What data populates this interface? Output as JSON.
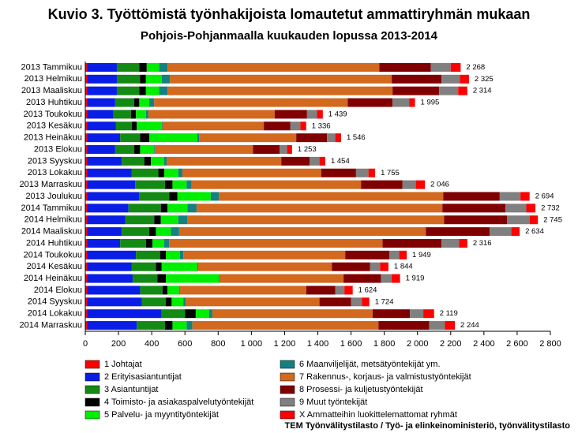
{
  "chart_data": {
    "type": "stacked_barh",
    "title": "Kuvio 3. Työttömistä työnhakijoista lomautetut ammattiryhmän mukaan",
    "subtitle": "Pohjois-Pohjanmaalla kuukauden lopussa 2013-2014",
    "source": "TEM Työnvälitystilasto / Työ- ja elinkeinoministeriö, työnvälitystilasto",
    "categories": [
      "2013 Tammikuu",
      "2013 Helmikuu",
      "2013 Maaliskuu",
      "2013 Huhtikuu",
      "2013 Toukokuu",
      "2013 Kesäkuu",
      "2013 Heinäkuu",
      "2013 Elokuu",
      "2013 Syyskuu",
      "2013 Lokakuu",
      "2013 Marraskuu",
      "2013 Joulukuu",
      "2014 Tammikuu",
      "2014 Helmikuu",
      "2014 Maaliskuu",
      "2014 Huhtikuu",
      "2014 Toukokuu",
      "2014 Kesäkuu",
      "2014 Heinäkuu",
      "2014 Elokuu",
      "2014 Syyskuu",
      "2014 Lokakuu",
      "2014 Marraskuu"
    ],
    "series": [
      {
        "name": "1 Johtajat",
        "color": "#ff0000",
        "values": [
          10,
          10,
          10,
          10,
          10,
          10,
          10,
          10,
          10,
          10,
          10,
          10,
          10,
          10,
          10,
          10,
          10,
          10,
          10,
          10,
          10,
          10,
          10
        ]
      },
      {
        "name": "2 Erityisasiantuntijat",
        "color": "#0a1de6",
        "values": [
          180,
          180,
          180,
          170,
          160,
          175,
          200,
          170,
          210,
          270,
          290,
          315,
          250,
          230,
          210,
          200,
          295,
          270,
          275,
          320,
          330,
          450,
          300
        ]
      },
      {
        "name": "3 Asiantuntijat",
        "color": "#138a13",
        "values": [
          135,
          140,
          135,
          115,
          105,
          95,
          120,
          115,
          135,
          160,
          180,
          180,
          195,
          175,
          165,
          155,
          145,
          145,
          150,
          135,
          145,
          140,
          170
        ]
      },
      {
        "name": "4 Toimisto- ja asiakaspalvelutyöntekijät",
        "color": "#000000",
        "values": [
          45,
          35,
          40,
          30,
          30,
          30,
          55,
          35,
          40,
          35,
          45,
          50,
          40,
          40,
          40,
          40,
          35,
          35,
          50,
          30,
          35,
          65,
          45
        ]
      },
      {
        "name": "5 Palvelu- ja myyntityöntekijät",
        "color": "#00ee00",
        "values": [
          75,
          95,
          80,
          60,
          60,
          150,
          290,
          85,
          80,
          85,
          85,
          200,
          120,
          105,
          90,
          70,
          85,
          215,
          320,
          70,
          70,
          80,
          85
        ]
      },
      {
        "name": "6 Maanviljelijät, metsätyöntekijät ym.",
        "color": "#158080",
        "values": [
          50,
          50,
          50,
          30,
          15,
          5,
          10,
          5,
          15,
          25,
          30,
          50,
          55,
          55,
          50,
          30,
          20,
          5,
          5,
          5,
          15,
          20,
          35
        ]
      },
      {
        "name": "7 Rakennus-, korjaus- ja valmistustyöntekijät",
        "color": "#d2691e",
        "values": [
          1275,
          1335,
          1355,
          1165,
          760,
          610,
          585,
          590,
          690,
          835,
          1020,
          1350,
          1480,
          1545,
          1485,
          1285,
          975,
          805,
          745,
          760,
          805,
          965,
          1120
        ]
      },
      {
        "name": "8 Prosessi- ja kuljetustyöntekijät",
        "color": "#800000",
        "values": [
          310,
          300,
          280,
          270,
          195,
          160,
          185,
          160,
          170,
          210,
          250,
          340,
          380,
          380,
          385,
          355,
          265,
          230,
          225,
          175,
          190,
          225,
          305
        ]
      },
      {
        "name": "9 Muut työntekijät",
        "color": "#808080",
        "values": [
          120,
          110,
          115,
          100,
          60,
          60,
          50,
          45,
          60,
          75,
          80,
          125,
          125,
          135,
          130,
          105,
          60,
          60,
          65,
          55,
          65,
          80,
          95
        ]
      },
      {
        "name": "X Ammatteihin luokittelemattomat ryhmät",
        "color": "#ff0000",
        "values": [
          60,
          55,
          55,
          35,
          35,
          35,
          35,
          30,
          35,
          40,
          55,
          55,
          55,
          50,
          50,
          50,
          45,
          50,
          50,
          50,
          45,
          65,
          60
        ]
      }
    ],
    "totals": [
      2268,
      2325,
      2314,
      1995,
      1439,
      1336,
      1546,
      1253,
      1454,
      1755,
      2046,
      2694,
      2732,
      2745,
      2634,
      2316,
      1949,
      1844,
      1919,
      1624,
      1724,
      2119,
      2244
    ],
    "total_labels": [
      "2 268",
      "2 325",
      "2 314",
      "1 995",
      "1 439",
      "1 336",
      "1 546",
      "1 253",
      "1 454",
      "1 755",
      "2 046",
      "2 694",
      "2 732",
      "2 745",
      "2 634",
      "2 316",
      "1 949",
      "1 844",
      "1 919",
      "1 624",
      "1 724",
      "2 119",
      "2 244"
    ],
    "xlim": [
      0,
      2800
    ],
    "xticks": [
      0,
      200,
      400,
      600,
      800,
      {
        "value": 1000,
        "label": "1 000"
      },
      {
        "value": 1200,
        "label": "1 200"
      },
      {
        "value": 1400,
        "label": "1 400"
      },
      {
        "value": 1600,
        "label": "1 600"
      },
      {
        "value": 1800,
        "label": "1 800"
      },
      {
        "value": 2000,
        "label": "2 000"
      },
      {
        "value": 2200,
        "label": "2 200"
      },
      {
        "value": 2400,
        "label": "2 400"
      },
      {
        "value": 2600,
        "label": "2 600"
      },
      {
        "value": 2800,
        "label": "2 800"
      }
    ],
    "grid": false,
    "legend": "bottom"
  }
}
